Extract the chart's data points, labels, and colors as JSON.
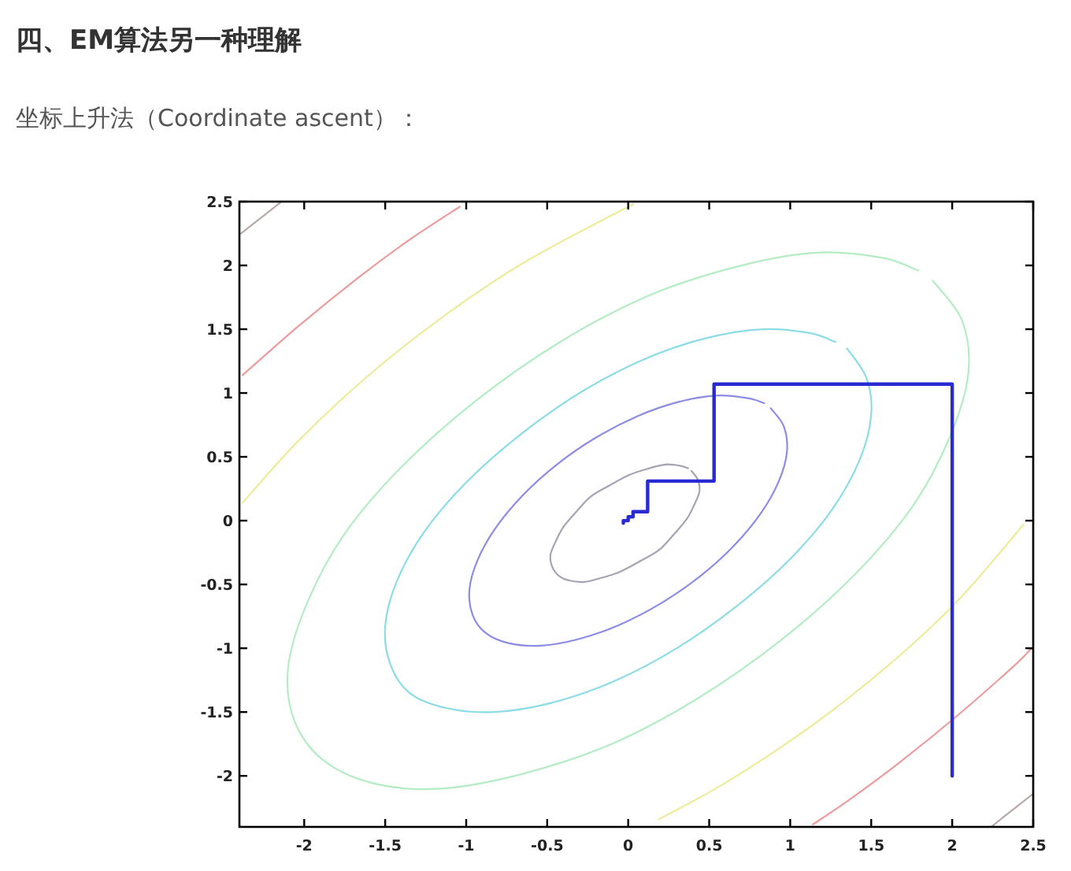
{
  "chart_data": {
    "type": "line",
    "title": "四、EM算法另一种理解",
    "subtitle": "坐标上升法（Coordinate ascent）：",
    "xlim": [
      -2.4,
      2.5
    ],
    "ylim": [
      -2.4,
      2.5
    ],
    "xticks": [
      -2,
      -1.5,
      -1,
      -0.5,
      0,
      0.5,
      1,
      1.5,
      2,
      2.5
    ],
    "yticks": [
      -2,
      -1.5,
      -1,
      -0.5,
      0,
      0.5,
      1,
      1.5,
      2,
      2.5
    ],
    "series": [
      {
        "color": "#a4a4b4",
        "x": [
          0.39,
          0.43,
          0.44,
          0.41,
          0.36,
          0.28,
          0.19,
          0.07,
          -0.05,
          -0.17,
          -0.27,
          -0.36,
          -0.43,
          -0.47,
          -0.48,
          -0.45,
          -0.4,
          -0.32,
          -0.23,
          -0.11,
          0.01,
          0.13,
          0.23,
          0.32,
          0.37
        ],
        "values": [
          0.39,
          0.32,
          0.23,
          0.13,
          0.01,
          -0.11,
          -0.23,
          -0.32,
          -0.4,
          -0.45,
          -0.48,
          -0.47,
          -0.43,
          -0.36,
          -0.27,
          -0.17,
          -0.05,
          0.07,
          0.19,
          0.28,
          0.36,
          0.41,
          0.44,
          0.43,
          0.41
        ]
      },
      {
        "color": "#8c8ce6",
        "x": [
          0.88,
          0.96,
          0.98,
          0.93,
          0.82,
          0.65,
          0.44,
          0.2,
          -0.06,
          -0.31,
          -0.54,
          -0.74,
          -0.88,
          -0.96,
          -0.98,
          -0.93,
          -0.82,
          -0.65,
          -0.44,
          -0.2,
          0.06,
          0.31,
          0.54,
          0.74,
          0.84
        ],
        "values": [
          0.88,
          0.74,
          0.54,
          0.31,
          0.06,
          -0.2,
          -0.44,
          -0.65,
          -0.82,
          -0.93,
          -0.98,
          -0.96,
          -0.88,
          -0.74,
          -0.54,
          -0.31,
          -0.06,
          0.2,
          0.44,
          0.65,
          0.82,
          0.93,
          0.98,
          0.96,
          0.92
        ]
      },
      {
        "color": "#8cdce6",
        "x": [
          1.35,
          1.47,
          1.5,
          1.43,
          1.26,
          1.0,
          0.67,
          0.3,
          -0.09,
          -0.48,
          -0.83,
          -1.12,
          -1.35,
          -1.47,
          -1.5,
          -1.43,
          -1.26,
          -1.0,
          -0.67,
          -0.3,
          0.09,
          0.48,
          0.83,
          1.12,
          1.28
        ],
        "values": [
          1.35,
          1.12,
          0.83,
          0.48,
          0.09,
          -0.3,
          -0.67,
          -1.0,
          -1.26,
          -1.43,
          -1.5,
          -1.47,
          -1.35,
          -1.12,
          -0.83,
          -0.48,
          -0.09,
          0.3,
          0.67,
          1.0,
          1.26,
          1.43,
          1.5,
          1.47,
          1.4
        ]
      },
      {
        "color": "#b4ecc4",
        "x": [
          1.88,
          2.06,
          2.1,
          1.99,
          1.76,
          1.4,
          0.94,
          0.42,
          -0.12,
          -0.67,
          -1.16,
          -1.57,
          -1.88,
          -2.06,
          -2.1,
          -1.99,
          -1.76,
          -1.4,
          -0.94,
          -0.42,
          0.12,
          0.67,
          1.16,
          1.57,
          1.79
        ],
        "values": [
          1.88,
          1.57,
          1.16,
          0.67,
          0.12,
          -0.42,
          -0.94,
          -1.4,
          -1.76,
          -1.99,
          -2.1,
          -2.06,
          -1.88,
          -1.57,
          -1.16,
          -0.67,
          -0.12,
          0.42,
          0.94,
          1.4,
          1.76,
          1.99,
          2.1,
          2.06,
          1.96
        ]
      },
      {
        "color": "#ecec9c",
        "x": [
          -2.38,
          -2.04,
          -1.61,
          -1.13,
          -0.62,
          0.03
        ],
        "values": [
          0.14,
          0.62,
          1.13,
          1.61,
          2.04,
          2.48
        ]
      },
      {
        "color": "#ecec9c",
        "x": [
          2.44,
          2.04,
          1.61,
          1.13,
          0.62,
          0.19
        ],
        "values": [
          -0.03,
          -0.62,
          -1.13,
          -1.61,
          -2.04,
          -2.34
        ]
      },
      {
        "color": "#ec9c9c",
        "x": [
          -2.38,
          -2.03,
          -1.66,
          -1.34,
          -1.04
        ],
        "values": [
          1.14,
          1.53,
          1.91,
          2.21,
          2.46
        ]
      },
      {
        "color": "#ec9c9c",
        "x": [
          2.49,
          2.38,
          2.03,
          1.66,
          1.34,
          1.14
        ],
        "values": [
          -1.0,
          -1.14,
          -1.53,
          -1.91,
          -2.21,
          -2.38
        ]
      },
      {
        "color": "#b8a8a8",
        "x": [
          -2.39,
          -2.27,
          -2.14
        ],
        "values": [
          2.25,
          2.37,
          2.5
        ]
      },
      {
        "color": "#b8a8a8",
        "x": [
          2.5,
          2.37,
          2.24
        ],
        "values": [
          -2.14,
          -2.27,
          -2.4
        ]
      },
      {
        "color": "#2a2ad2",
        "x": [
          2,
          2,
          0.53,
          0.53,
          0.12,
          0.12,
          0.03,
          0.03,
          0,
          0,
          -0.03,
          -0.03
        ],
        "values": [
          -2,
          1.07,
          1.07,
          0.31,
          0.31,
          0.07,
          0.07,
          0.03,
          0.03,
          0,
          0,
          -0.02
        ]
      }
    ]
  }
}
